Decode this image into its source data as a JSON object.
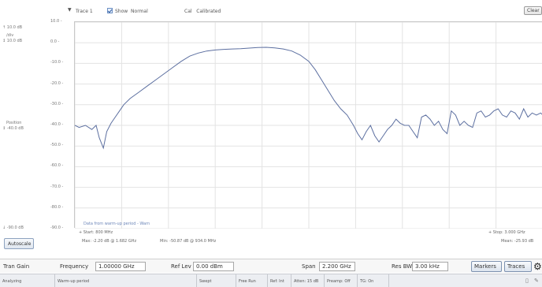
{
  "trace_bar": {
    "trace_selector": "Trace 1",
    "show_label": "Show",
    "show_mode": "Normal",
    "cal_label": "Cal",
    "cal_value": "Calibrated",
    "clear_button": "Clear"
  },
  "left_panel": {
    "top_level": "10.0 dB",
    "per_div_label": "/div",
    "per_div": "10.0 dB",
    "position_label": "Position",
    "position": "-40.0 dB",
    "bottom_level": "-90.0 dB",
    "autoscale_button": "Autoscale"
  },
  "annotation": "Data from warm-up period - Warn",
  "readouts": {
    "start": "Start: 800 MHz",
    "stop": "Stop: 3.000 GHz",
    "max": "Max: -2.20 dB @ 1.682 GHz",
    "min": "Min: -50.87 dB @ 934.0 MHz",
    "mean": "Mean: -25.93 dB"
  },
  "controls": {
    "measurement": "Tran Gain",
    "frequency_label": "Frequency",
    "frequency_value": "1.00000 GHz",
    "ref_lev_label": "Ref Lev",
    "ref_lev_value": "0.00 dBm",
    "span_label": "Span",
    "span_value": "2.200 GHz",
    "res_bw_label": "Res BW",
    "res_bw_value": "3.00 kHz",
    "markers_button": "Markers",
    "traces_button": "Traces"
  },
  "status_bar": {
    "analyzing": "Analyzing",
    "warmup": "Warm-up period",
    "sweep": "Swept",
    "run": "Free Run",
    "ref": "Ref: Int",
    "atten": "Atten: 15 dB",
    "preamp": "Preamp: Off",
    "tg": "TG: On"
  },
  "colors": {
    "trace": "#5c6fa0",
    "grid": "#e3e3e3",
    "annotation": "#6e87b9"
  },
  "icons": {
    "settings": "gear-icon",
    "trace_dropdown": "chevron-down-icon"
  },
  "chart_data": {
    "type": "line",
    "xlabel": "",
    "ylabel": "",
    "xlim": [
      800,
      3000
    ],
    "ylim": [
      -90,
      10
    ],
    "y_ticks": [
      "10.0 -",
      "0.0 -",
      "-10.0 -",
      "-20.0 -",
      "-30.0 -",
      "-40.0 -",
      "-50.0 -",
      "-60.0 -",
      "-70.0 -",
      "-80.0 -",
      "-90.0 -"
    ],
    "grid": true,
    "series": [
      {
        "x": [
          800,
          820,
          850,
          880,
          900,
          915,
          934,
          950,
          970,
          990,
          1010,
          1030,
          1060,
          1100,
          1140,
          1180,
          1220,
          1260,
          1300,
          1340,
          1380,
          1420,
          1460,
          1500,
          1540,
          1580,
          1620,
          1660,
          1700,
          1740,
          1780,
          1820,
          1860,
          1900,
          1930,
          1960,
          1990,
          2020,
          2050,
          2080,
          2110,
          2130,
          2150,
          2170,
          2190,
          2210,
          2230,
          2250,
          2270,
          2290,
          2310,
          2330,
          2350,
          2370,
          2390,
          2410,
          2430,
          2450,
          2470,
          2490,
          2510,
          2530,
          2550,
          2570,
          2590,
          2610,
          2630,
          2650,
          2670,
          2690,
          2710,
          2730,
          2750,
          2770,
          2790,
          2810,
          2830,
          2850,
          2870,
          2890,
          2910,
          2930,
          2950,
          2970,
          2990,
          3000
        ],
        "values": [
          -40,
          -41,
          -40,
          -42,
          -40,
          -46,
          -51,
          -43,
          -39,
          -36,
          -33,
          -30,
          -27,
          -24,
          -21,
          -18,
          -15,
          -12,
          -9,
          -6.5,
          -5,
          -4,
          -3.5,
          -3.2,
          -3,
          -2.9,
          -2.6,
          -2.3,
          -2.2,
          -2.5,
          -3,
          -4,
          -6,
          -9,
          -13,
          -18,
          -23,
          -28,
          -32,
          -35,
          -40,
          -44,
          -47,
          -43,
          -40,
          -45,
          -48,
          -45,
          -42,
          -40,
          -37,
          -39,
          -40,
          -40,
          -43,
          -46,
          -36,
          -35,
          -37,
          -40,
          -38,
          -42,
          -44,
          -33,
          -35,
          -40,
          -38,
          -40,
          -41,
          -34,
          -33,
          -36,
          -35,
          -33,
          -32,
          -35,
          -36,
          -33,
          -34,
          -37,
          -32,
          -36,
          -34,
          -35,
          -34,
          -35
        ]
      }
    ]
  }
}
